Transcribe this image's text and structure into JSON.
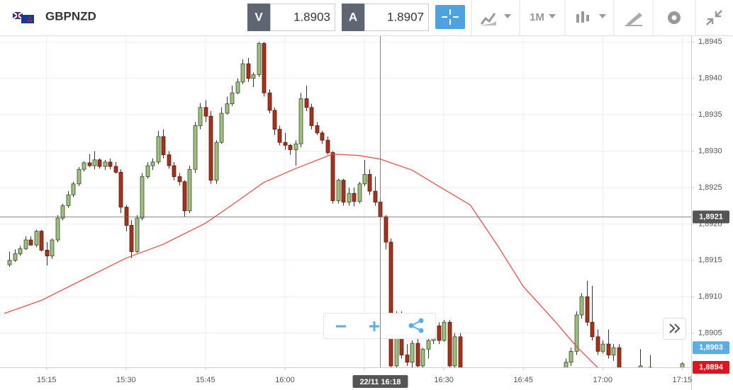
{
  "header": {
    "symbol": "GBPNZD",
    "sell_label": "V",
    "sell_price": 1.8903,
    "buy_label": "A",
    "buy_price": 1.8907,
    "timeframe": "1M"
  },
  "chart_data": {
    "type": "candlestick",
    "up_color": "#9dc07f",
    "down_color": "#a5321b",
    "ma_color": "#e8504a",
    "grid": true,
    "xlim": [
      -1.8,
      128.7
    ],
    "ylim": [
      1.89003,
      1.89458
    ],
    "xticks": [
      {
        "value": 7,
        "label": "15:15"
      },
      {
        "value": 22,
        "label": "15:30"
      },
      {
        "value": 37,
        "label": "15:45"
      },
      {
        "value": 52,
        "label": "16:00"
      },
      {
        "value": 67,
        "label": "16:15"
      },
      {
        "value": 82,
        "label": "16:30"
      },
      {
        "value": 97,
        "label": "16:45"
      },
      {
        "value": 112,
        "label": "17:00"
      },
      {
        "value": 127,
        "label": "17:15"
      }
    ],
    "yticks": [
      {
        "value": 1.8905,
        "label": "1,8905"
      },
      {
        "value": 1.891,
        "label": "1,8910"
      },
      {
        "value": 1.8915,
        "label": "1,8915"
      },
      {
        "value": 1.892,
        "label": "1,8920"
      },
      {
        "value": 1.8925,
        "label": "1,8925"
      },
      {
        "value": 1.893,
        "label": "1,8930"
      },
      {
        "value": 1.8935,
        "label": "1,8935"
      },
      {
        "value": 1.894,
        "label": "1,8940"
      },
      {
        "value": 1.8945,
        "label": "1,8945"
      }
    ],
    "candles": [
      [
        1.89144,
        1.89162,
        1.89141,
        1.8915
      ],
      [
        1.8915,
        1.89165,
        1.89148,
        1.89159
      ],
      [
        1.89159,
        1.8917,
        1.89156,
        1.89166
      ],
      [
        1.89166,
        1.89183,
        1.89164,
        1.89178
      ],
      [
        1.89178,
        1.89183,
        1.8917,
        1.89171
      ],
      [
        1.89171,
        1.89192,
        1.89168,
        1.8919
      ],
      [
        1.8919,
        1.89192,
        1.89162,
        1.89164
      ],
      [
        1.89164,
        1.89175,
        1.89143,
        1.89156
      ],
      [
        1.89156,
        1.8918,
        1.89152,
        1.89178
      ],
      [
        1.89178,
        1.89212,
        1.89175,
        1.89208
      ],
      [
        1.89208,
        1.89228,
        1.89205,
        1.89225
      ],
      [
        1.89225,
        1.89245,
        1.89222,
        1.8924
      ],
      [
        1.8924,
        1.89258,
        1.89237,
        1.89255
      ],
      [
        1.89255,
        1.89278,
        1.89252,
        1.89275
      ],
      [
        1.89275,
        1.89286,
        1.89272,
        1.89284
      ],
      [
        1.89284,
        1.89296,
        1.89278,
        1.8928
      ],
      [
        1.8928,
        1.893,
        1.89275,
        1.89288
      ],
      [
        1.89288,
        1.8929,
        1.89276,
        1.89279
      ],
      [
        1.89279,
        1.89288,
        1.89274,
        1.89285
      ],
      [
        1.89285,
        1.8929,
        1.89275,
        1.89279
      ],
      [
        1.89279,
        1.89285,
        1.89269,
        1.89271
      ],
      [
        1.89271,
        1.89275,
        1.89215,
        1.89223
      ],
      [
        1.89223,
        1.89226,
        1.8919,
        1.89198
      ],
      [
        1.89198,
        1.89205,
        1.89153,
        1.89162
      ],
      [
        1.89162,
        1.89212,
        1.8916,
        1.89208
      ],
      [
        1.89208,
        1.8927,
        1.89205,
        1.89265
      ],
      [
        1.89265,
        1.89285,
        1.89262,
        1.8928
      ],
      [
        1.8928,
        1.8929,
        1.89274,
        1.89285
      ],
      [
        1.89285,
        1.89328,
        1.89282,
        1.8932
      ],
      [
        1.8932,
        1.8933,
        1.8929,
        1.89295
      ],
      [
        1.89295,
        1.893,
        1.89276,
        1.8928
      ],
      [
        1.8928,
        1.89285,
        1.8926,
        1.89265
      ],
      [
        1.89265,
        1.8927,
        1.89253,
        1.89258
      ],
      [
        1.89258,
        1.8926,
        1.8921,
        1.89218
      ],
      [
        1.89218,
        1.8928,
        1.89215,
        1.89275
      ],
      [
        1.89275,
        1.8934,
        1.8927,
        1.89335
      ],
      [
        1.89335,
        1.89366,
        1.8933,
        1.8936
      ],
      [
        1.8936,
        1.8937,
        1.8934,
        1.89348
      ],
      [
        1.89348,
        1.89355,
        1.89255,
        1.8926
      ],
      [
        1.8926,
        1.89315,
        1.89255,
        1.89312
      ],
      [
        1.89312,
        1.8936,
        1.8931,
        1.89352
      ],
      [
        1.89352,
        1.89375,
        1.8935,
        1.89365
      ],
      [
        1.89365,
        1.8939,
        1.89362,
        1.8938
      ],
      [
        1.8938,
        1.894,
        1.89378,
        1.89395
      ],
      [
        1.89395,
        1.89426,
        1.89392,
        1.8942
      ],
      [
        1.8942,
        1.89428,
        1.89395,
        1.894
      ],
      [
        1.894,
        1.89408,
        1.89388,
        1.89405
      ],
      [
        1.89405,
        1.8945,
        1.89402,
        1.89448
      ],
      [
        1.89448,
        1.8945,
        1.89375,
        1.8938
      ],
      [
        1.8938,
        1.89385,
        1.89352,
        1.89356
      ],
      [
        1.89356,
        1.8936,
        1.89322,
        1.8933
      ],
      [
        1.8933,
        1.89335,
        1.89308,
        1.89312
      ],
      [
        1.89312,
        1.89325,
        1.89302,
        1.89308
      ],
      [
        1.89308,
        1.8931,
        1.89295,
        1.89302
      ],
      [
        1.89302,
        1.89315,
        1.8928,
        1.8931
      ],
      [
        1.8931,
        1.8938,
        1.89305,
        1.89372
      ],
      [
        1.89372,
        1.8939,
        1.89355,
        1.8936
      ],
      [
        1.8936,
        1.89365,
        1.8933,
        1.89335
      ],
      [
        1.89335,
        1.8934,
        1.89322,
        1.89325
      ],
      [
        1.89325,
        1.89328,
        1.8931,
        1.89315
      ],
      [
        1.89315,
        1.8932,
        1.89295,
        1.89298
      ],
      [
        1.89298,
        1.893,
        1.89228,
        1.89232
      ],
      [
        1.89232,
        1.89262,
        1.89228,
        1.8926
      ],
      [
        1.8926,
        1.89262,
        1.89225,
        1.8923
      ],
      [
        1.8923,
        1.8925,
        1.89225,
        1.89242
      ],
      [
        1.89242,
        1.8925,
        1.89224,
        1.89231
      ],
      [
        1.89231,
        1.89258,
        1.89228,
        1.89255
      ],
      [
        1.89255,
        1.89288,
        1.89252,
        1.89268
      ],
      [
        1.89268,
        1.89275,
        1.8924,
        1.89245
      ],
      [
        1.89245,
        1.89265,
        1.89225,
        1.8923
      ],
      [
        1.8923,
        1.89235,
        1.89208,
        1.8921
      ],
      [
        1.8921,
        1.89212,
        1.89165,
        1.89175
      ],
      [
        1.89175,
        1.8918,
        1.89,
        1.89005
      ],
      [
        1.89005,
        1.8908,
        1.89,
        1.89075
      ],
      [
        1.89075,
        1.8908,
        1.89015,
        1.8902
      ],
      [
        1.8902,
        1.89035,
        1.89005,
        1.8901
      ],
      [
        1.8901,
        1.8904,
        1.89,
        1.89036
      ],
      [
        1.89036,
        1.89055,
        1.89,
        1.89005
      ],
      [
        1.89005,
        1.8903,
        1.89,
        1.89028
      ],
      [
        1.89028,
        1.89045,
        1.89015,
        1.8904
      ],
      [
        1.8904,
        1.89065,
        1.89035,
        1.8906
      ],
      [
        1.8906,
        1.89065,
        1.89035,
        1.8904
      ],
      [
        1.8904,
        1.89068,
        1.89038,
        1.89065
      ],
      [
        1.89065,
        1.89068,
        1.89,
        1.89005
      ],
      [
        1.89005,
        1.8905,
        1.89,
        1.89045
      ],
      [
        1.89045,
        1.8905,
        1.8899,
        1.88995
      ],
      null,
      null,
      null,
      null,
      null,
      null,
      null,
      null,
      null,
      null,
      null,
      null,
      null,
      null,
      null,
      null,
      null,
      null,
      null,
      [
        1.8899,
        1.89015,
        1.88985,
        1.8901
      ],
      [
        1.8901,
        1.8903,
        1.89005,
        1.89025
      ],
      [
        1.89025,
        1.8908,
        1.8902,
        1.89075
      ],
      [
        1.89075,
        1.89105,
        1.8907,
        1.891
      ],
      [
        1.891,
        1.89122,
        1.8906,
        1.89065
      ],
      [
        1.89065,
        1.89115,
        1.8904,
        1.89045
      ],
      [
        1.89045,
        1.89055,
        1.8902,
        1.89025
      ],
      [
        1.89025,
        1.8904,
        1.89022,
        1.89035
      ],
      [
        1.89035,
        1.89055,
        1.89015,
        1.8902
      ],
      [
        1.8902,
        1.89035,
        1.89012,
        1.8903
      ],
      [
        1.8903,
        1.89035,
        1.8899,
        1.88995
      ],
      null,
      null,
      null,
      [
        1.89,
        1.89028,
        1.88995,
        1.89005
      ],
      null,
      [
        1.89,
        1.8902,
        1.88995,
        1.89003
      ],
      null,
      null,
      null,
      null,
      null,
      [
        1.89,
        1.8901,
        1.88995,
        1.89008
      ]
    ],
    "ma": {
      "x": [
        -1,
        6,
        14,
        22,
        29,
        37,
        42,
        48,
        54,
        61,
        66,
        70,
        76,
        81,
        87,
        92,
        97,
        103,
        107,
        111
      ],
      "values": [
        1.89077,
        1.89095,
        1.89124,
        1.89153,
        1.89172,
        1.89201,
        1.89226,
        1.89257,
        1.89276,
        1.89296,
        1.89294,
        1.89289,
        1.89274,
        1.89252,
        1.89226,
        1.89172,
        1.89114,
        1.89066,
        1.89032,
        1.89003
      ]
    },
    "crosshair": {
      "x": 70,
      "value": 1.8921,
      "label": "1,8921",
      "time_label": "22/11 16:18"
    },
    "bid_marker": {
      "value": 1.8903,
      "label": "1,8903",
      "color": "#5aaee6"
    },
    "last_marker": {
      "value": 1.8894,
      "label": "1,8894",
      "color": "#e0141e"
    }
  }
}
